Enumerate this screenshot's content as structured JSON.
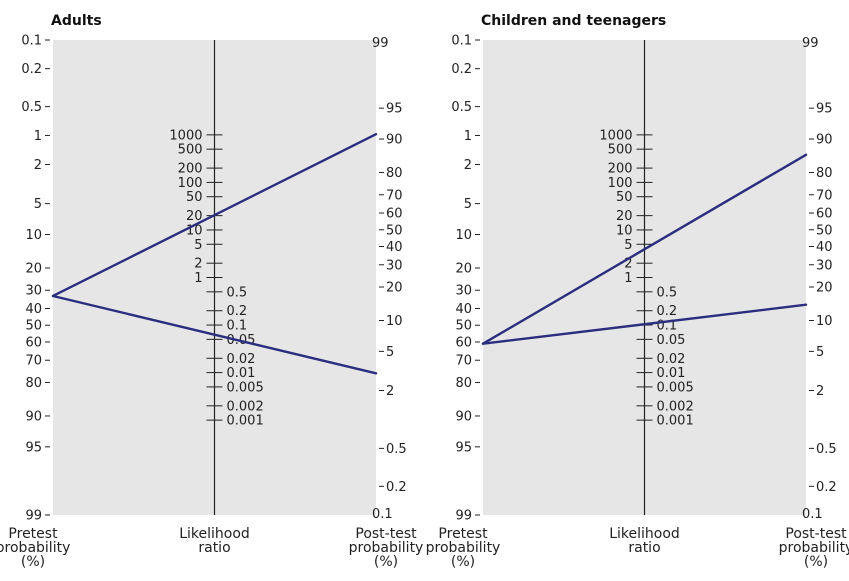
{
  "chart_data": [
    {
      "type": "nomogram",
      "title": "Adults",
      "axes": {
        "pretest": {
          "title": [
            "Pretest",
            "probability",
            "(%)"
          ],
          "ticks": [
            "0.1",
            "0.2",
            "0.5",
            "1",
            "2",
            "5",
            "10",
            "20",
            "30",
            "40",
            "50",
            "60",
            "70",
            "80",
            "90",
            "95",
            "99"
          ]
        },
        "likelihood_ratio": {
          "title": [
            "Likelihood",
            "ratio"
          ],
          "ticks": [
            "1000",
            "500",
            "200",
            "100",
            "50",
            "20",
            "10",
            "5",
            "2",
            "1",
            "0.5",
            "0.2",
            "0.1",
            "0.05",
            "0.02",
            "0.01",
            "0.005",
            "0.002",
            "0.001"
          ]
        },
        "posttest": {
          "title": [
            "Post-test",
            "probability",
            "(%)"
          ],
          "ticks": [
            "99",
            "95",
            "90",
            "80",
            "70",
            "60",
            "50",
            "40",
            "30",
            "20",
            "10",
            "5",
            "2",
            "0.5",
            "0.2",
            "0.1"
          ]
        }
      },
      "lines": [
        {
          "pretest_probability": 33,
          "posttest_probability": 91
        },
        {
          "pretest_probability": 33,
          "posttest_probability": 3
        }
      ]
    },
    {
      "type": "nomogram",
      "title": "Children and teenagers",
      "axes": {
        "pretest": {
          "title": [
            "Pretest",
            "probability",
            "(%)"
          ],
          "ticks": [
            "0.1",
            "0.2",
            "0.5",
            "1",
            "2",
            "5",
            "10",
            "20",
            "30",
            "40",
            "50",
            "60",
            "70",
            "80",
            "90",
            "95",
            "99"
          ]
        },
        "likelihood_ratio": {
          "title": [
            "Likelihood",
            "ratio"
          ],
          "ticks": [
            "1000",
            "500",
            "200",
            "100",
            "50",
            "20",
            "10",
            "5",
            "2",
            "1",
            "0.5",
            "0.2",
            "0.1",
            "0.05",
            "0.02",
            "0.01",
            "0.005",
            "0.002",
            "0.001"
          ]
        },
        "posttest": {
          "title": [
            "Post-test",
            "probability",
            "(%)"
          ],
          "ticks": [
            "99",
            "95",
            "90",
            "80",
            "70",
            "60",
            "50",
            "40",
            "30",
            "20",
            "10",
            "5",
            "2",
            "0.5",
            "0.2",
            "0.1"
          ]
        }
      },
      "lines": [
        {
          "pretest_probability": 61,
          "posttest_probability": 86
        },
        {
          "pretest_probability": 61,
          "posttest_probability": 14
        }
      ]
    }
  ],
  "colors": {
    "panel_background": "#e6e6e6",
    "line": "#2b2e7f",
    "axis": "#222222"
  }
}
